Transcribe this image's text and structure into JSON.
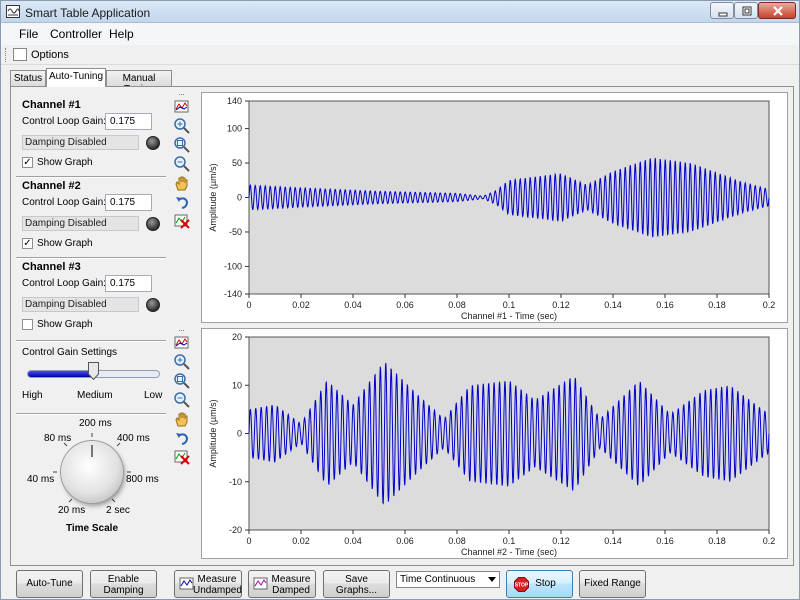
{
  "window": {
    "title": "Smart Table Application"
  },
  "menu": {
    "file": "File",
    "controller": "Controller",
    "help": "Help"
  },
  "options": {
    "label": "Options"
  },
  "tabs": [
    {
      "label": "Status",
      "active": false
    },
    {
      "label": "Auto-Tuning",
      "active": true
    },
    {
      "label": "Manual Tuning",
      "active": false
    }
  ],
  "channels": [
    {
      "title": "Channel #1",
      "gain_label": "Control Loop Gain:",
      "gain_value": "0.175",
      "damping_status": "Damping Disabled",
      "show_graph_label": "Show Graph",
      "show_graph": true
    },
    {
      "title": "Channel #2",
      "gain_label": "Control Loop Gain:",
      "gain_value": "0.175",
      "damping_status": "Damping Disabled",
      "show_graph_label": "Show Graph",
      "show_graph": true
    },
    {
      "title": "Channel #3",
      "gain_label": "Control Loop Gain:",
      "gain_value": "0.175",
      "damping_status": "Damping Disabled",
      "show_graph_label": "Show Graph",
      "show_graph": false
    }
  ],
  "gain_settings": {
    "title": "Control Gain Settings",
    "high": "High",
    "medium": "Medium",
    "low": "Low",
    "level": 0.5
  },
  "time_scale": {
    "title": "Time Scale",
    "labels": [
      "20 ms",
      "40 ms",
      "80 ms",
      "200 ms",
      "400 ms",
      "800 ms",
      "2 sec"
    ]
  },
  "toolbar_icons": [
    "chart-icon",
    "zoom-in-icon",
    "zoom-fit-icon",
    "zoom-out-icon",
    "pan-hand-icon",
    "undo-icon",
    "clear-chart-icon"
  ],
  "buttons": {
    "auto_tune": "Auto-Tune",
    "enable_damping_1": "Enable",
    "enable_damping_2": "Damping",
    "measure_undamped_1": "Measure",
    "measure_undamped_2": "Undamped",
    "measure_damped_1": "Measure",
    "measure_damped_2": "Damped",
    "save_graphs_1": "Save",
    "save_graphs_2": "Graphs...",
    "time_mode": "Time Continuous",
    "stop": "Stop",
    "fixed_range": "Fixed Range"
  },
  "colors": {
    "plot_bg": "#dcdcdc",
    "signal": "#0000cc",
    "accent": "#3c7fb1"
  },
  "chart_data": [
    {
      "type": "line",
      "xlabel": "Channel #1 - Time (sec)",
      "ylabel": "Amplitude (µm/s)",
      "xlim": [
        0,
        0.2
      ],
      "ylim": [
        -140,
        140
      ],
      "xticks": [
        "0",
        "0.02",
        "0.04",
        "0.06",
        "0.08",
        "0.1",
        "0.12",
        "0.14",
        "0.16",
        "0.18",
        "0.2"
      ],
      "yticks": [
        "140",
        "100",
        "50",
        "0",
        "-50",
        "-100",
        "-140"
      ],
      "ytick_values": [
        140,
        100,
        50,
        0,
        -50,
        -100,
        -140
      ],
      "signal_frequency_hz": 520,
      "envelope": {
        "x": [
          0,
          0.02,
          0.05,
          0.08,
          0.09,
          0.095,
          0.1,
          0.12,
          0.13,
          0.14,
          0.155,
          0.17,
          0.19,
          0.2
        ],
        "amp": [
          18,
          14,
          9,
          6,
          2,
          10,
          25,
          35,
          18,
          38,
          58,
          50,
          22,
          12
        ]
      }
    },
    {
      "type": "line",
      "xlabel": "Channel #2 - Time (sec)",
      "ylabel": "Amplitude (µm/s)",
      "xlim": [
        0,
        0.2
      ],
      "ylim": [
        -20,
        20
      ],
      "xticks": [
        "0",
        "0.02",
        "0.04",
        "0.06",
        "0.08",
        "0.1",
        "0.12",
        "0.14",
        "0.16",
        "0.18",
        "0.2"
      ],
      "yticks": [
        "20",
        "10",
        "0",
        "-10",
        "-20"
      ],
      "ytick_values": [
        20,
        10,
        0,
        -10,
        -20
      ],
      "signal_frequency_hz": 480,
      "envelope": {
        "x": [
          0,
          0.01,
          0.02,
          0.03,
          0.04,
          0.052,
          0.065,
          0.075,
          0.085,
          0.1,
          0.11,
          0.125,
          0.135,
          0.15,
          0.162,
          0.175,
          0.185,
          0.2
        ],
        "amp": [
          5,
          6,
          2,
          11,
          6,
          15,
          8,
          3,
          10,
          11,
          7,
          12,
          3,
          11,
          4,
          9,
          10,
          4
        ]
      }
    }
  ]
}
